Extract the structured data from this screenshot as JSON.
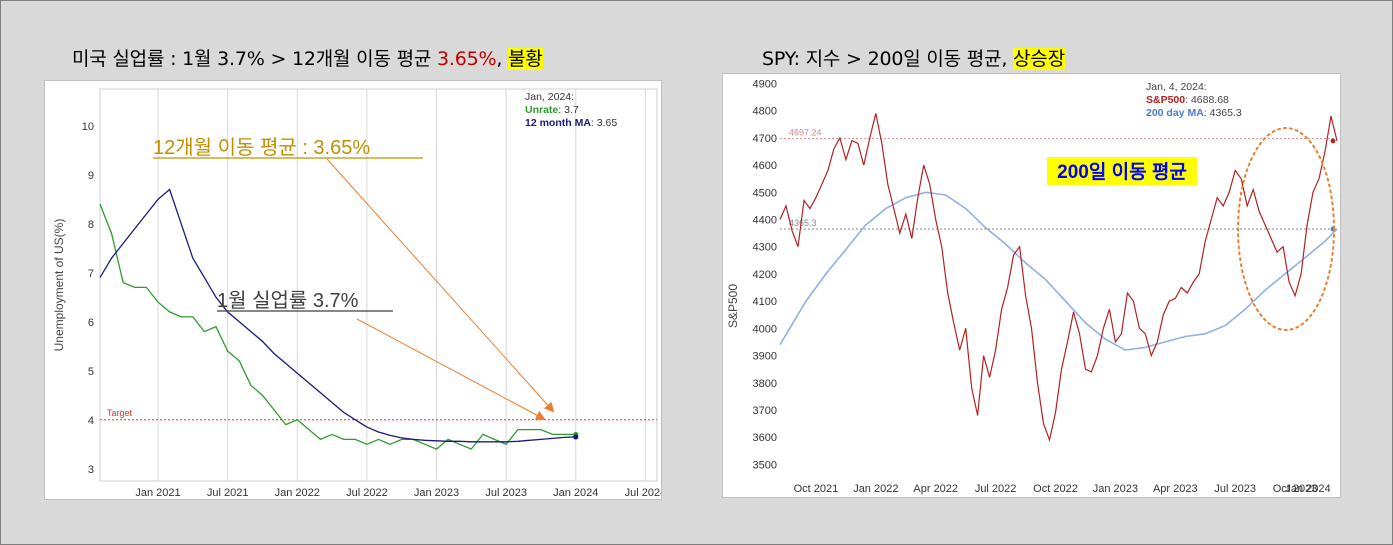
{
  "left": {
    "heading": {
      "prefix": "미국 실업률 : 1월 3.7% > 12개월 이동 평균 ",
      "red": "3.65%",
      "sep": ", ",
      "highlight": "불황"
    },
    "chart_data": {
      "type": "line",
      "ylabel": "Unemployment of US(%)",
      "xlabel": "",
      "ylim": [
        2.75,
        10.75
      ],
      "yticks": [
        3,
        4,
        5,
        6,
        7,
        8,
        9,
        10
      ],
      "xlim": [
        0,
        48
      ],
      "xticks": [
        {
          "x": 5,
          "label": "Jan 2021"
        },
        {
          "x": 11,
          "label": "Jul 2021"
        },
        {
          "x": 17,
          "label": "Jan 2022"
        },
        {
          "x": 23,
          "label": "Jul 2022"
        },
        {
          "x": 29,
          "label": "Jan 2023"
        },
        {
          "x": 35,
          "label": "Jul 2023"
        },
        {
          "x": 41,
          "label": "Jan 2024"
        },
        {
          "x": 47,
          "label": "Jul 2024"
        }
      ],
      "target": {
        "value": 4.0,
        "label": "Target"
      },
      "series": [
        {
          "name": "Unrate",
          "color": "#2e9c2e",
          "x": [
            0,
            1,
            2,
            3,
            4,
            5,
            6,
            7,
            8,
            9,
            10,
            11,
            12,
            13,
            14,
            15,
            16,
            17,
            18,
            19,
            20,
            21,
            22,
            23,
            24,
            25,
            26,
            27,
            28,
            29,
            30,
            31,
            32,
            33,
            34,
            35,
            36,
            37,
            38,
            39,
            40,
            41
          ],
          "values": [
            8.4,
            7.8,
            6.8,
            6.7,
            6.7,
            6.4,
            6.2,
            6.1,
            6.1,
            5.8,
            5.9,
            5.4,
            5.2,
            4.7,
            4.5,
            4.2,
            3.9,
            4.0,
            3.8,
            3.6,
            3.7,
            3.6,
            3.6,
            3.5,
            3.6,
            3.5,
            3.6,
            3.6,
            3.5,
            3.4,
            3.6,
            3.5,
            3.4,
            3.7,
            3.6,
            3.5,
            3.8,
            3.8,
            3.8,
            3.7,
            3.7,
            3.7
          ]
        },
        {
          "name": "12 month MA",
          "color": "#1a1a7a",
          "x": [
            0,
            1,
            2,
            3,
            4,
            5,
            6,
            7,
            8,
            9,
            10,
            11,
            12,
            13,
            14,
            15,
            16,
            17,
            18,
            19,
            20,
            21,
            22,
            23,
            24,
            25,
            26,
            27,
            28,
            29,
            30,
            31,
            32,
            33,
            34,
            35,
            36,
            37,
            38,
            39,
            40,
            41
          ],
          "values": [
            6.9,
            7.3,
            7.6,
            7.9,
            8.2,
            8.5,
            8.7,
            8.0,
            7.3,
            6.9,
            6.5,
            6.2,
            6.0,
            5.8,
            5.6,
            5.35,
            5.15,
            4.95,
            4.75,
            4.55,
            4.35,
            4.15,
            4.0,
            3.85,
            3.75,
            3.68,
            3.63,
            3.6,
            3.58,
            3.57,
            3.56,
            3.56,
            3.55,
            3.55,
            3.55,
            3.55,
            3.56,
            3.58,
            3.6,
            3.62,
            3.64,
            3.65
          ]
        }
      ],
      "tooltip": {
        "date": "Jan, 2024:",
        "unrate_label": "Unrate",
        "unrate_value": ": 3.7",
        "ma_label": "12 month MA",
        "ma_value": ": 3.65"
      },
      "annotations": {
        "ma_text": "12개월 이동 평균 : 3.65%",
        "ma_color": "#c09000",
        "unrate_text": "1월 실업률 3.7%",
        "unrate_color": "#404040",
        "arrow_color": "#ed7d31"
      }
    }
  },
  "right": {
    "heading": {
      "prefix": "SPY: 지수 > 200일 이동 평균, ",
      "highlight": "상승장"
    },
    "chart_data": {
      "type": "line",
      "ylabel": "S&P500",
      "xlabel": "",
      "ylim": [
        3450,
        4920
      ],
      "yticks": [
        3500,
        3600,
        3700,
        3800,
        3900,
        4000,
        4100,
        4200,
        4300,
        4400,
        4500,
        4600,
        4700,
        4800,
        4900
      ],
      "xlim": [
        -1.3,
        26.6
      ],
      "xticks": [
        {
          "x": 0.5,
          "label": "Oct 2021"
        },
        {
          "x": 3.5,
          "label": "Jan 2022"
        },
        {
          "x": 6.5,
          "label": "Apr 2022"
        },
        {
          "x": 9.5,
          "label": "Jul 2022"
        },
        {
          "x": 12.5,
          "label": "Oct 2022"
        },
        {
          "x": 15.5,
          "label": "Jan 2023"
        },
        {
          "x": 18.5,
          "label": "Apr 2023"
        },
        {
          "x": 21.5,
          "label": "Jul 2023"
        },
        {
          "x": 24.5,
          "label": "Oct 2023"
        },
        {
          "x": 27.5,
          "label": "Jan 2024"
        }
      ],
      "ref_lines": [
        {
          "value": 4697.24,
          "label": "4697.24",
          "color": "#d98a8a"
        },
        {
          "value": 4365.3,
          "label": "4365.3",
          "color": "#888888"
        }
      ],
      "series": [
        {
          "name": "S&P500",
          "color": "#b22222",
          "x": [
            -1.3,
            -1.0,
            -0.7,
            -0.4,
            -0.1,
            0.2,
            0.5,
            0.8,
            1.1,
            1.4,
            1.7,
            2.0,
            2.3,
            2.6,
            2.9,
            3.2,
            3.5,
            3.8,
            4.1,
            4.4,
            4.7,
            5.0,
            5.3,
            5.6,
            5.9,
            6.2,
            6.5,
            6.8,
            7.1,
            7.4,
            7.7,
            8.0,
            8.3,
            8.6,
            8.9,
            9.2,
            9.5,
            9.8,
            10.1,
            10.4,
            10.7,
            11.0,
            11.3,
            11.6,
            11.9,
            12.2,
            12.5,
            12.8,
            13.1,
            13.4,
            13.7,
            14.0,
            14.3,
            14.6,
            14.9,
            15.2,
            15.5,
            15.8,
            16.1,
            16.4,
            16.7,
            17.0,
            17.3,
            17.6,
            17.9,
            18.2,
            18.5,
            18.8,
            19.1,
            19.4,
            19.7,
            20.0,
            20.3,
            20.6,
            20.9,
            21.2,
            21.5,
            21.8,
            22.1,
            22.4,
            22.7,
            23.0,
            23.3,
            23.6,
            23.9,
            24.2,
            24.5,
            24.8,
            25.1,
            25.4,
            25.7,
            26.0,
            26.3,
            26.6
          ],
          "values": [
            4400,
            4450,
            4360,
            4300,
            4470,
            4440,
            4480,
            4530,
            4580,
            4660,
            4700,
            4620,
            4690,
            4680,
            4600,
            4700,
            4790,
            4680,
            4530,
            4440,
            4350,
            4420,
            4330,
            4480,
            4600,
            4530,
            4400,
            4300,
            4130,
            4020,
            3920,
            4000,
            3780,
            3680,
            3900,
            3820,
            3920,
            4070,
            4150,
            4270,
            4300,
            4120,
            4000,
            3800,
            3650,
            3590,
            3690,
            3850,
            3950,
            4060,
            3980,
            3850,
            3840,
            3900,
            4000,
            4070,
            3950,
            3980,
            4130,
            4100,
            4000,
            3980,
            3900,
            3950,
            4050,
            4100,
            4110,
            4150,
            4130,
            4170,
            4200,
            4320,
            4400,
            4480,
            4450,
            4500,
            4580,
            4550,
            4450,
            4510,
            4430,
            4380,
            4330,
            4280,
            4300,
            4170,
            4120,
            4200,
            4380,
            4500,
            4550,
            4650,
            4780,
            4688.68
          ],
          "end_value": 4688.68
        },
        {
          "name": "200 day MA",
          "color": "#90b0e6",
          "x": [
            -1.3,
            0,
            1,
            2,
            3,
            4,
            5,
            6,
            7,
            8,
            9,
            10,
            11,
            12,
            13,
            14,
            15,
            16,
            17,
            18,
            19,
            20,
            21,
            22,
            23,
            24,
            25,
            26,
            26.6
          ],
          "values": [
            3940,
            4100,
            4200,
            4290,
            4380,
            4440,
            4480,
            4500,
            4490,
            4440,
            4370,
            4310,
            4240,
            4180,
            4100,
            4020,
            3960,
            3920,
            3930,
            3950,
            3970,
            3980,
            4010,
            4070,
            4140,
            4200,
            4260,
            4320,
            4365.3
          ],
          "end_value": 4365.3
        }
      ],
      "tooltip": {
        "date": "Jan, 4, 2024:",
        "spx_label": "S&P500",
        "spx_value": ": 4688.68",
        "ma_label": "200 day MA",
        "ma_value": ": 4365.3"
      },
      "annotations": {
        "ma_text": "200일 이동 평균",
        "ma_bg": "#ffff00",
        "ma_color": "#0000ff",
        "ellipse_color": "#ed7d31"
      }
    }
  }
}
